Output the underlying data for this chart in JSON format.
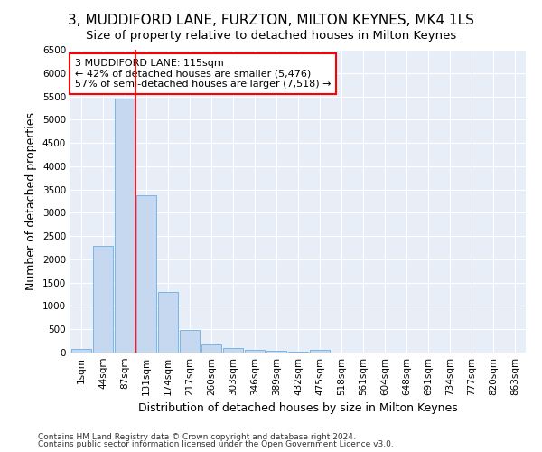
{
  "title1": "3, MUDDIFORD LANE, FURZTON, MILTON KEYNES, MK4 1LS",
  "title2": "Size of property relative to detached houses in Milton Keynes",
  "xlabel": "Distribution of detached houses by size in Milton Keynes",
  "ylabel": "Number of detached properties",
  "categories": [
    "1sqm",
    "44sqm",
    "87sqm",
    "131sqm",
    "174sqm",
    "217sqm",
    "260sqm",
    "303sqm",
    "346sqm",
    "389sqm",
    "432sqm",
    "475sqm",
    "518sqm",
    "561sqm",
    "604sqm",
    "648sqm",
    "691sqm",
    "734sqm",
    "777sqm",
    "820sqm",
    "863sqm"
  ],
  "bar_values": [
    70,
    2280,
    5450,
    3380,
    1300,
    480,
    170,
    100,
    60,
    30,
    10,
    50,
    0,
    0,
    0,
    0,
    0,
    0,
    0,
    0,
    0
  ],
  "bar_color": "#c5d8f0",
  "bar_edge_color": "#6aaee8",
  "vline_x": 2.5,
  "vline_color": "red",
  "annotation_text": "3 MUDDIFORD LANE: 115sqm\n← 42% of detached houses are smaller (5,476)\n57% of semi-detached houses are larger (7,518) →",
  "annotation_box_color": "white",
  "annotation_border_color": "red",
  "ylim": [
    0,
    6500
  ],
  "yticks": [
    0,
    500,
    1000,
    1500,
    2000,
    2500,
    3000,
    3500,
    4000,
    4500,
    5000,
    5500,
    6000,
    6500
  ],
  "footnote1": "Contains HM Land Registry data © Crown copyright and database right 2024.",
  "footnote2": "Contains public sector information licensed under the Open Government Licence v3.0.",
  "bg_color": "#e8eef8",
  "title_fontsize": 11,
  "subtitle_fontsize": 9.5,
  "label_fontsize": 9,
  "tick_fontsize": 7.5,
  "annotation_fontsize": 8,
  "footnote_fontsize": 6.5
}
